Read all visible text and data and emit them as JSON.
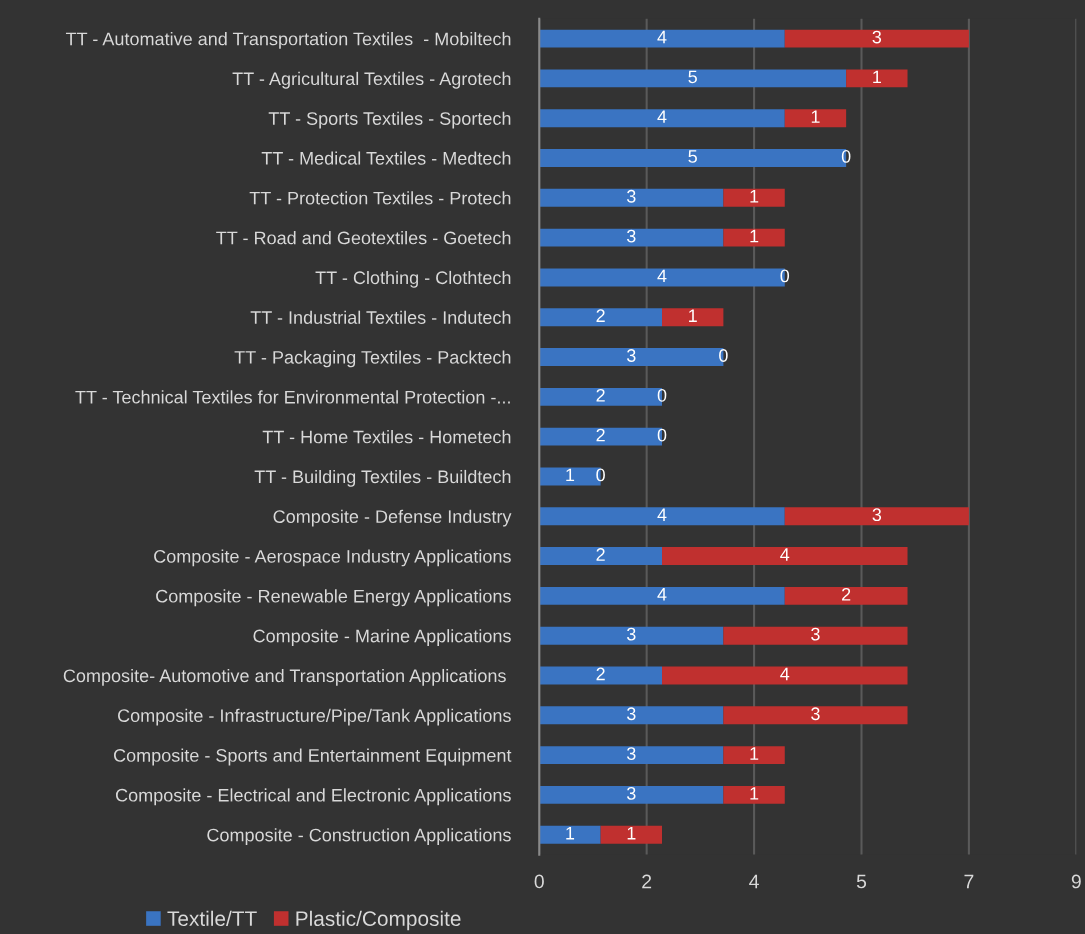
{
  "chart_data": {
    "type": "bar",
    "orientation": "horizontal",
    "stacked": true,
    "data_labels": true,
    "grid": "x",
    "legend": "bottom",
    "categories": [
      "TT - Automative and Transportation Textiles  - Mobiltech",
      "TT - Agricultural Textiles - Agrotech",
      "TT - Sports Textiles - Sportech",
      "TT - Medical Textiles - Medtech",
      "TT - Protection Textiles - Protech",
      "TT - Road and Geotextiles - Goetech",
      "TT - Clothing - Clothtech",
      "TT - Industrial Textiles - Indutech",
      "TT - Packaging Textiles - Packtech",
      "TT - Technical Textiles for Environmental Protection -...",
      "TT - Home Textiles - Hometech",
      "TT - Building Textiles - Buildtech",
      "Composite - Defense Industry",
      "Composite - Aerospace Industry Applications",
      "Composite - Renewable Energy Applications",
      "Composite - Marine Applications",
      "Composite- Automotive and Transportation Applications ",
      "Composite - Infrastructure/Pipe/Tank Applications",
      "Composite - Sports and Entertainment Equipment",
      "Composite - Electrical and Electronic Applications",
      "Composite - Construction Applications"
    ],
    "series": [
      {
        "name": "Textile/TT",
        "color": "#3a74c2",
        "values": [
          4,
          5,
          4,
          5,
          3,
          3,
          4,
          2,
          3,
          2,
          2,
          1,
          4,
          2,
          4,
          3,
          2,
          3,
          3,
          3,
          1
        ]
      },
      {
        "name": "Plastic/Composite",
        "color": "#c0302f",
        "values": [
          3,
          1,
          1,
          0,
          1,
          1,
          0,
          1,
          0,
          0,
          0,
          0,
          3,
          4,
          2,
          3,
          4,
          3,
          1,
          1,
          1
        ]
      }
    ],
    "xlim": [
      0,
      8.75
    ],
    "xticks": [
      0,
      {
        "value": 1.75,
        "label": "2"
      },
      {
        "value": 3.5,
        "label": "4"
      },
      {
        "value": 5.25,
        "label": "5"
      },
      7,
      {
        "value": 8.75,
        "label": "9"
      }
    ]
  }
}
